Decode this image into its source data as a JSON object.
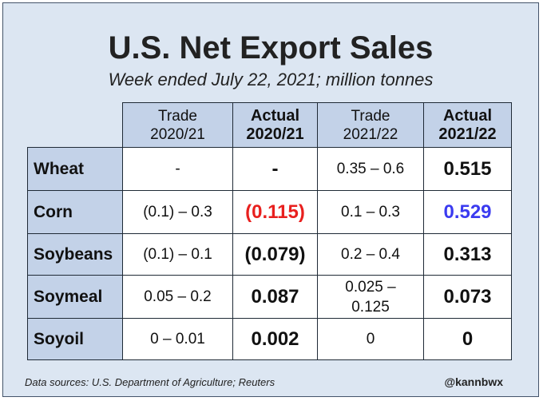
{
  "title": "U.S. Net Export Sales",
  "subtitle": "Week ended July 22, 2021; million tonnes",
  "headers": [
    {
      "line1": "Trade",
      "line2": "2020/21"
    },
    {
      "line1": "Actual",
      "line2": "2020/21"
    },
    {
      "line1": "Trade",
      "line2": "2021/22"
    },
    {
      "line1": "Actual",
      "line2": "2021/22"
    }
  ],
  "rows": [
    {
      "label": "Wheat",
      "trade_2021": "-",
      "actual_2021": "-",
      "trade_2122": "0.35 – 0.6",
      "actual_2122": "0.515"
    },
    {
      "label": "Corn",
      "trade_2021": "(0.1) – 0.3",
      "actual_2021": "(0.115)",
      "trade_2122": "0.1 – 0.3",
      "actual_2122": "0.529"
    },
    {
      "label": "Soybeans",
      "trade_2021": "(0.1) – 0.1",
      "actual_2021": "(0.079)",
      "trade_2122": "0.2 – 0.4",
      "actual_2122": "0.313"
    },
    {
      "label": "Soymeal",
      "trade_2021": "0.05 – 0.2",
      "actual_2021": "0.087",
      "trade_2122": "0.025 – 0.125",
      "actual_2122": "0.073"
    },
    {
      "label": "Soyoil",
      "trade_2021": "0 – 0.01",
      "actual_2021": "0.002",
      "trade_2122": "0",
      "actual_2122": "0"
    }
  ],
  "colors": {
    "background": "#dce6f2",
    "header_fill": "#c3d2e8",
    "negative_red": "#e8201e",
    "positive_blue": "#3b3bf0"
  },
  "footer": {
    "source": "Data sources: U.S. Department of Agriculture; Reuters",
    "handle": "@kannbwx"
  }
}
